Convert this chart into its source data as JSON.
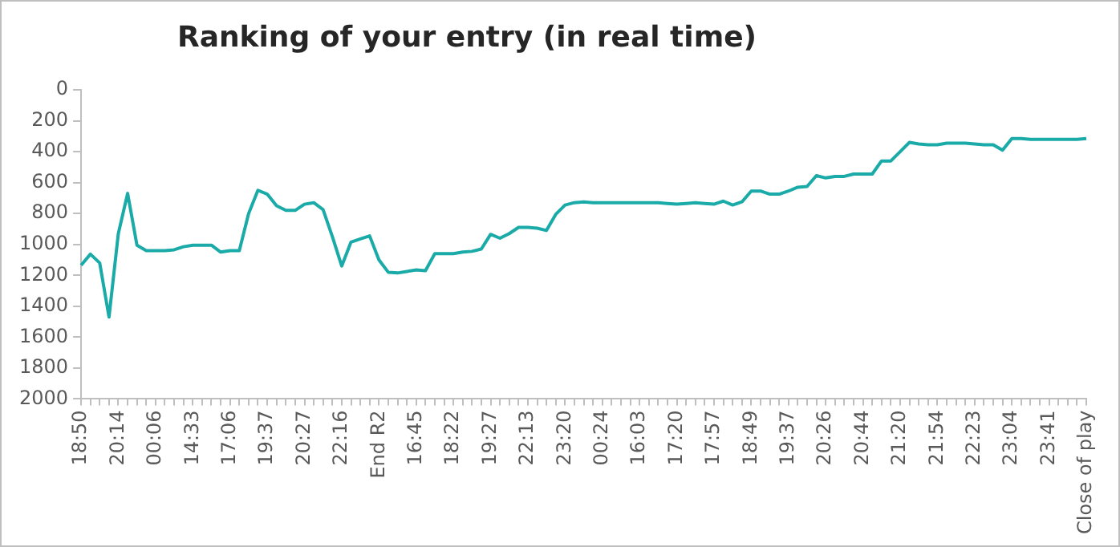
{
  "chart_data": {
    "type": "line",
    "title": "Ranking of your entry (in real time)",
    "categories": [
      "18:50",
      null,
      null,
      null,
      "20:14",
      null,
      null,
      null,
      "00:06",
      null,
      null,
      null,
      "14:33",
      null,
      null,
      null,
      "17:06",
      null,
      null,
      null,
      "19:37",
      null,
      null,
      null,
      "20:27",
      null,
      null,
      null,
      "22:16",
      null,
      null,
      null,
      "End R2",
      null,
      null,
      null,
      "16:45",
      null,
      null,
      null,
      "18:22",
      null,
      null,
      null,
      "19:27",
      null,
      null,
      null,
      "22:13",
      null,
      null,
      null,
      "23:20",
      null,
      null,
      null,
      "00:24",
      null,
      null,
      null,
      "16:03",
      null,
      null,
      null,
      "17:20",
      null,
      null,
      null,
      "17:57",
      null,
      null,
      null,
      "18:49",
      null,
      null,
      null,
      "19:37",
      null,
      null,
      null,
      "20:26",
      null,
      null,
      null,
      "20:44",
      null,
      null,
      null,
      "21:20",
      null,
      null,
      null,
      "21:54",
      null,
      null,
      null,
      "22:23",
      null,
      null,
      null,
      "23:04",
      null,
      null,
      null,
      "23:41",
      null,
      null,
      null,
      "Close of play"
    ],
    "series": [
      {
        "color": "#1aaba8",
        "values": [
          1135,
          1063,
          1120,
          1470,
          930,
          670,
          1005,
          1040,
          1040,
          1040,
          1035,
          1015,
          1005,
          1005,
          1005,
          1050,
          1040,
          1040,
          800,
          650,
          675,
          750,
          780,
          780,
          740,
          730,
          775,
          950,
          1140,
          985,
          965,
          945,
          1100,
          1180,
          1185,
          1175,
          1165,
          1170,
          1060,
          1060,
          1060,
          1050,
          1045,
          1030,
          935,
          960,
          930,
          890,
          890,
          895,
          910,
          805,
          745,
          730,
          725,
          730,
          730,
          730,
          730,
          730,
          730,
          730,
          730,
          735,
          740,
          735,
          730,
          735,
          740,
          720,
          745,
          725,
          655,
          655,
          675,
          675,
          655,
          630,
          625,
          555,
          570,
          560,
          560,
          545,
          545,
          545,
          460,
          460,
          400,
          340,
          350,
          355,
          355,
          345,
          345,
          345,
          350,
          355,
          355,
          390,
          315,
          315,
          320,
          320,
          320,
          320,
          320,
          320,
          315
        ]
      }
    ],
    "ylim": [
      2000,
      0
    ],
    "yticks": [
      0,
      200,
      400,
      600,
      800,
      1000,
      1200,
      1400,
      1600,
      1800,
      2000
    ],
    "grid": false,
    "legend": false,
    "marker": "none",
    "line_style": "solid"
  }
}
